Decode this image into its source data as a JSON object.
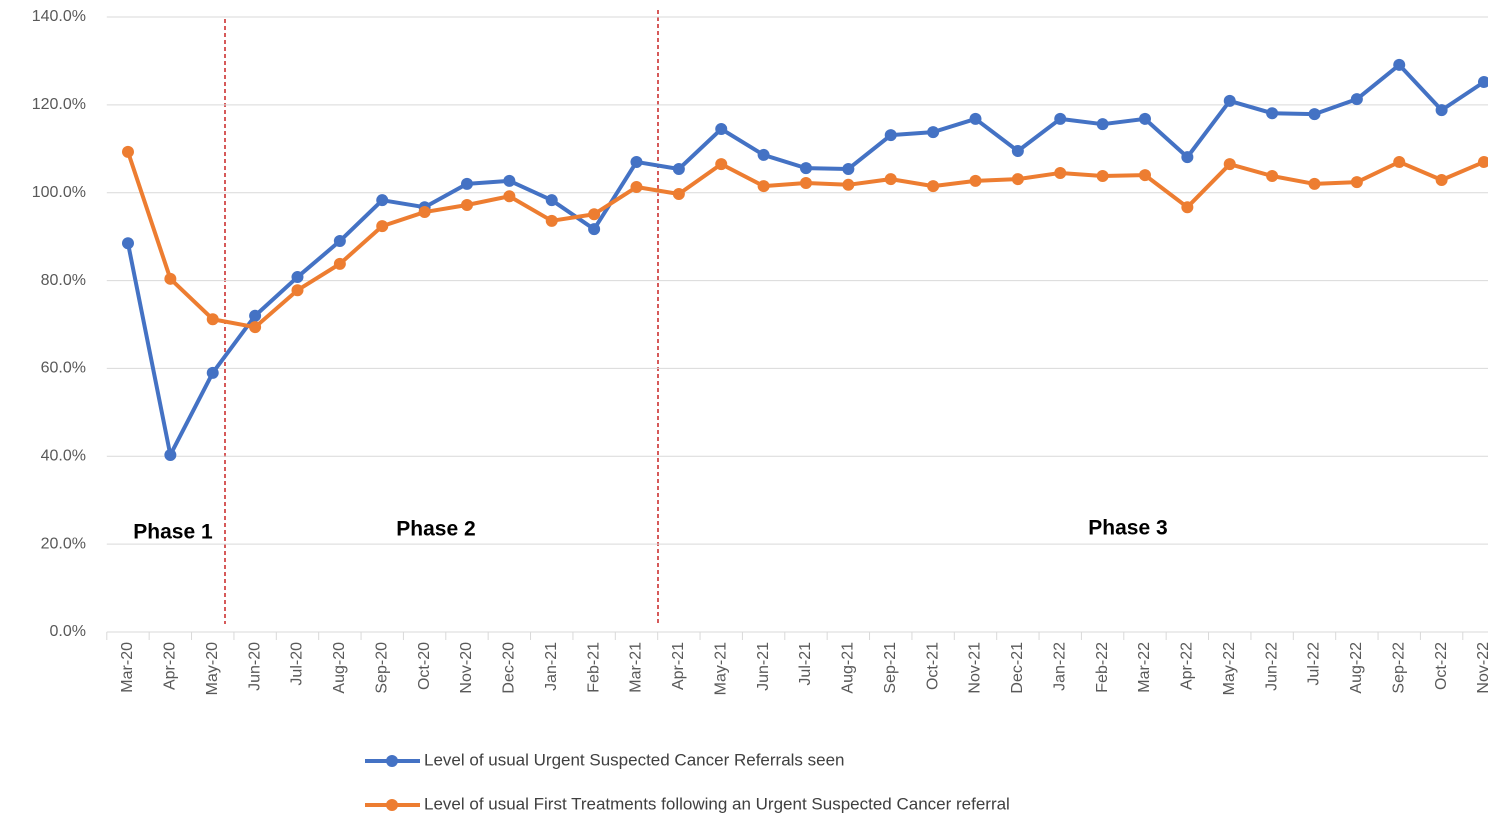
{
  "chart_data": {
    "type": "line",
    "categories": [
      "Mar-20",
      "Apr-20",
      "May-20",
      "Jun-20",
      "Jul-20",
      "Aug-20",
      "Sep-20",
      "Oct-20",
      "Nov-20",
      "Dec-20",
      "Jan-21",
      "Feb-21",
      "Mar-21",
      "Apr-21",
      "May-21",
      "Jun-21",
      "Jul-21",
      "Aug-21",
      "Sep-21",
      "Oct-21",
      "Nov-21",
      "Dec-21",
      "Jan-22",
      "Feb-22",
      "Mar-22",
      "Apr-22",
      "May-22",
      "Jun-22",
      "Jul-22",
      "Aug-22",
      "Sep-22",
      "Oct-22",
      "Nov-22"
    ],
    "series": [
      {
        "name": "Level of usual Urgent Suspected Cancer Referrals seen",
        "color": "#4472c4",
        "values": [
          88.5,
          40.3,
          59,
          72,
          80.8,
          89,
          98.3,
          96.7,
          102,
          102.7,
          98.3,
          91.7,
          107,
          105.4,
          114.5,
          108.6,
          105.6,
          105.4,
          113.1,
          113.8,
          116.8,
          109.5,
          116.8,
          115.6,
          116.8,
          108.1,
          120.9,
          118.1,
          117.9,
          121.3,
          129.1,
          118.8,
          125.2
        ]
      },
      {
        "name": "Level of usual First Treatments following an Urgent Suspected Cancer referral",
        "color": "#ed7d31",
        "values": [
          109.3,
          80.4,
          71.2,
          69.4,
          77.8,
          83.8,
          92.4,
          95.6,
          97.2,
          99.2,
          93.6,
          95.1,
          101.3,
          99.7,
          106.5,
          101.5,
          102.2,
          101.8,
          103.1,
          101.5,
          102.7,
          103.1,
          104.5,
          103.8,
          104,
          96.7,
          106.5,
          103.8,
          102,
          102.4,
          107,
          102.9,
          107
        ]
      }
    ],
    "ylim": [
      0,
      140
    ],
    "yticks": [
      {
        "value": 0,
        "label": "0.0%"
      },
      {
        "value": 20,
        "label": "20.0%"
      },
      {
        "value": 40,
        "label": "40.0%"
      },
      {
        "value": 60,
        "label": "60.0%"
      },
      {
        "value": 80,
        "label": "80.0%"
      },
      {
        "value": 100,
        "label": "100.0%"
      },
      {
        "value": 120,
        "label": "120.0%"
      },
      {
        "value": 140,
        "label": "140.0%"
      }
    ],
    "grid": true,
    "legend": "bottom",
    "annotations": [
      "Phase 1",
      "Phase 2",
      "Phase 3"
    ]
  }
}
